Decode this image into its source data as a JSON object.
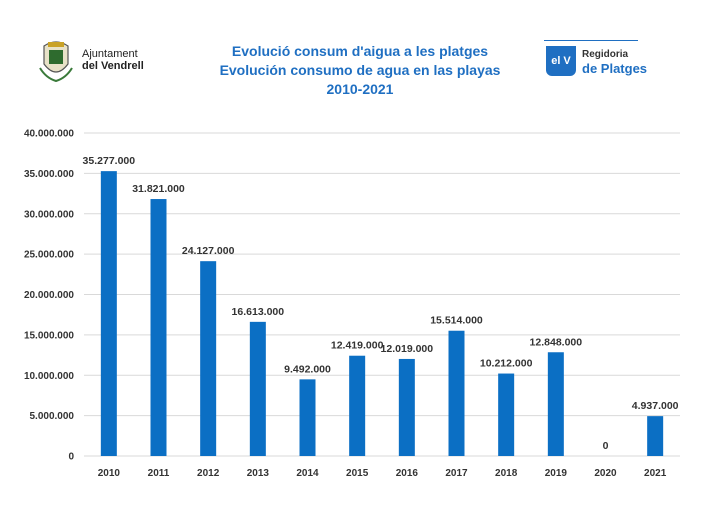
{
  "header": {
    "org_line1": "Ajuntament",
    "org_line2": "del Vendrell",
    "brand_badge": "el V",
    "brand_line1": "Regidoria",
    "brand_line2": "de Platges"
  },
  "colors": {
    "bar": "#0b6fc4",
    "title": "#1f6fc2",
    "grid": "#d9d9d9"
  },
  "chart_data": {
    "type": "bar",
    "title": "Evolució consum d'aigua a les platges",
    "subtitle": "Evolución consumo de agua en las playas",
    "period": "2010-2021",
    "xlabel": "",
    "ylabel": "",
    "ylim": [
      0,
      40000000
    ],
    "ytick_step": 5000000,
    "grid": true,
    "legend": "none",
    "categories": [
      "2010",
      "2011",
      "2012",
      "2013",
      "2014",
      "2015",
      "2016",
      "2017",
      "2018",
      "2019",
      "2020",
      "2021"
    ],
    "values": [
      35277000,
      31821000,
      24127000,
      16613000,
      9492000,
      12419000,
      12019000,
      15514000,
      10212000,
      12848000,
      0,
      4937000
    ],
    "value_labels": [
      "35.277.000",
      "31.821.000",
      "24.127.000",
      "16.613.000",
      "9.492.000",
      "12.419.000",
      "12.019.000",
      "15.514.000",
      "10.212.000",
      "12.848.000",
      "0",
      "4.937.000"
    ],
    "ytick_labels": [
      "0",
      "5.000.000",
      "10.000.000",
      "15.000.000",
      "20.000.000",
      "25.000.000",
      "30.000.000",
      "35.000.000",
      "40.000.000"
    ]
  }
}
